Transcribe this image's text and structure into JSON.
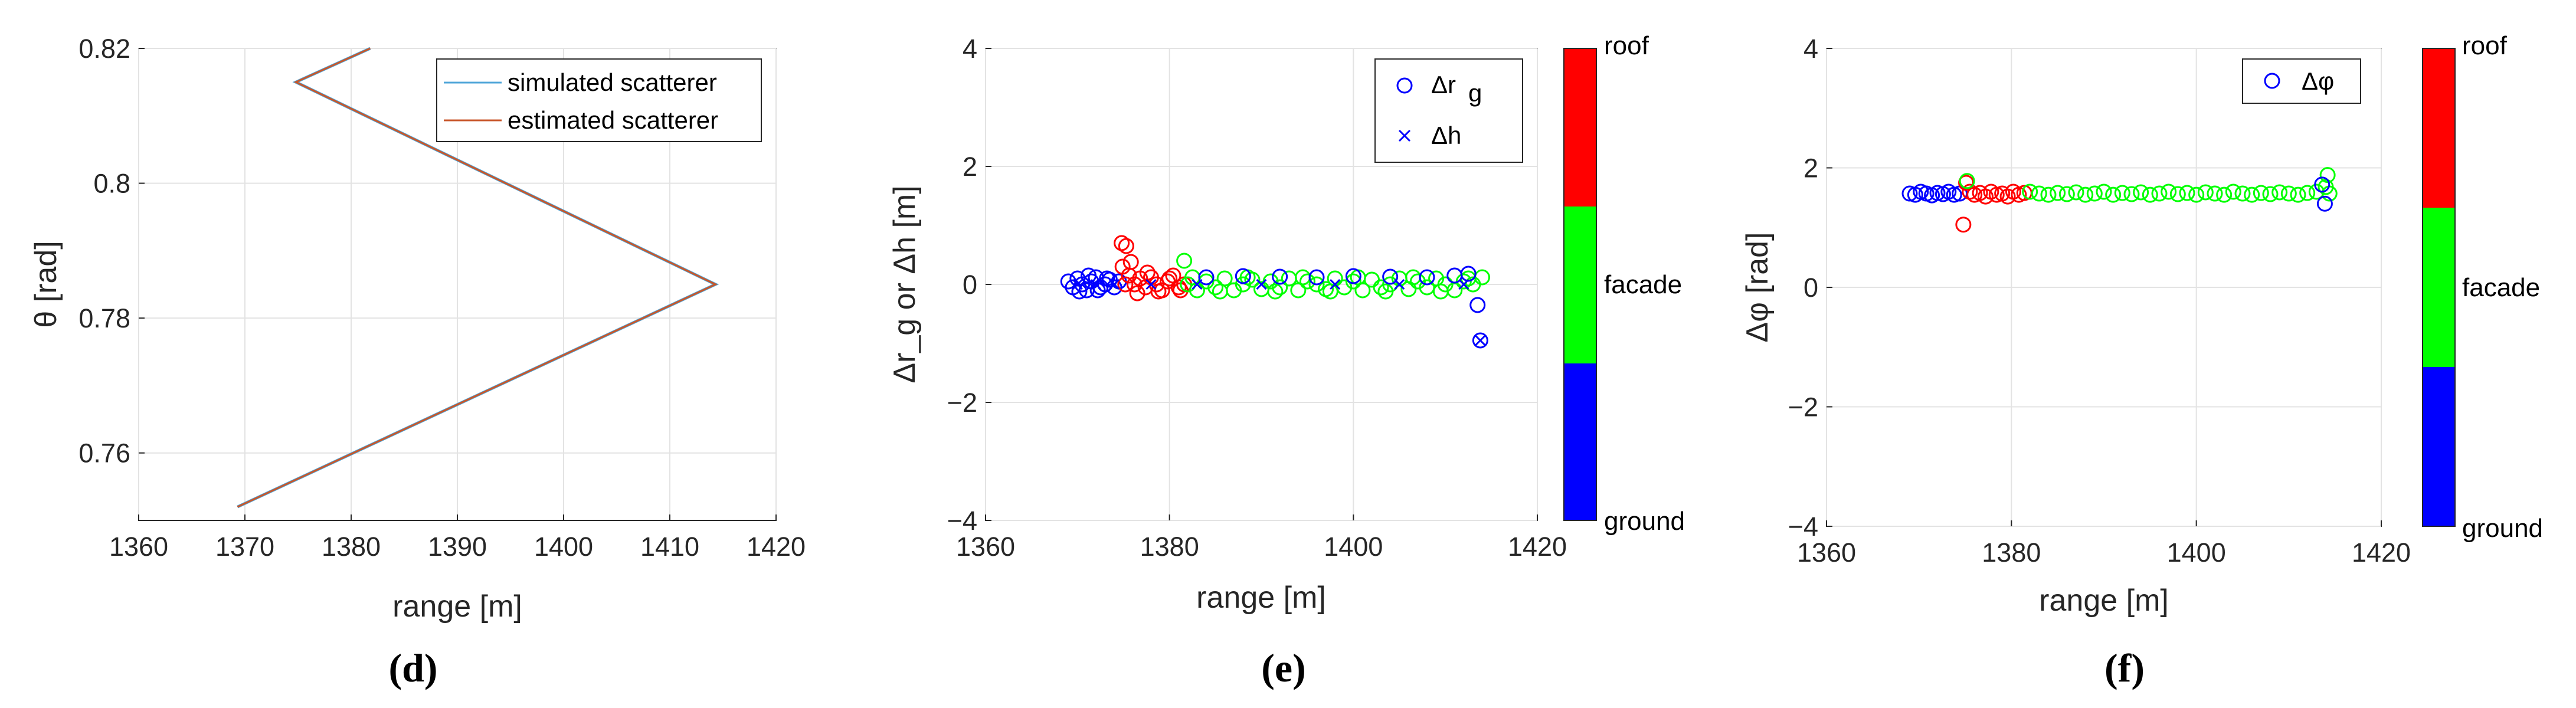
{
  "chart_data": [
    {
      "panel": "d",
      "type": "line",
      "caption": "(d)",
      "xlabel": "range [m]",
      "ylabel": "θ [rad]",
      "xlim": [
        1360,
        1420
      ],
      "ylim": [
        0.75,
        0.82
      ],
      "xticks": [
        "1360",
        "1370",
        "1380",
        "1390",
        "1400",
        "1410",
        "1420"
      ],
      "yticks": [
        "0.76",
        "0.78",
        "0.8",
        "0.82"
      ],
      "legend_position": "top-right",
      "grid": true,
      "series": [
        {
          "name": "simulated scatterer",
          "color": "#4fa6d8",
          "x": [
            1369.3,
            1414.3,
            1374.8,
            1381.8
          ],
          "y": [
            0.752,
            0.785,
            0.815,
            0.82
          ]
        },
        {
          "name": "estimated scatterer",
          "color": "#c8562a",
          "x": [
            1369.3,
            1414.3,
            1374.8,
            1381.8
          ],
          "y": [
            0.752,
            0.785,
            0.815,
            0.82
          ]
        }
      ]
    },
    {
      "panel": "e",
      "type": "scatter",
      "caption": "(e)",
      "xlabel": "range [m]",
      "ylabel": "Δr_g or Δh [m]",
      "xlim": [
        1360,
        1420
      ],
      "ylim": [
        -4,
        4
      ],
      "xticks": [
        "1360",
        "1380",
        "1400",
        "1420"
      ],
      "yticks": [
        "−4",
        "−2",
        "0",
        "2",
        "4"
      ],
      "legend_position": "top-right",
      "grid": true,
      "legend": [
        "Δr",
        "g",
        "Δh"
      ],
      "colorbar": {
        "labels": [
          "roof",
          "facade",
          "ground"
        ],
        "colors": [
          "#ff0000",
          "#00ff00",
          "#0000ff"
        ]
      },
      "series": [
        {
          "name": "Δr_g",
          "marker": "circle",
          "groups": [
            {
              "class": "ground",
              "color": "#0000ff",
              "x": [
                1369,
                1369.5,
                1370,
                1370.5,
                1371,
                1371.5,
                1372,
                1372.5,
                1373,
                1373.5,
                1374,
                1374.5,
                1370.2,
                1371.2,
                1372.2,
                1373.2
              ],
              "y": [
                0.05,
                -0.05,
                0.1,
                0.0,
                -0.1,
                0.05,
                0.12,
                -0.05,
                0.0,
                0.08,
                -0.05,
                0.05,
                -0.12,
                0.15,
                -0.1,
                0.1
              ]
            },
            {
              "class": "roof",
              "color": "#ff0000",
              "x": [
                1374.8,
                1375.3,
                1375.8,
                1374.9,
                1375.6,
                1376.2,
                1376.8,
                1377.4,
                1378,
                1378.6,
                1379.2,
                1379.8,
                1380.4,
                1381,
                1381.6,
                1376.5,
                1377.6,
                1378.8,
                1380,
                1381.2,
                1375.2
              ],
              "y": [
                0.7,
                0.65,
                0.38,
                0.3,
                0.15,
                0.0,
                0.1,
                -0.05,
                0.12,
                0.0,
                -0.1,
                0.05,
                0.15,
                -0.05,
                0.0,
                -0.15,
                0.2,
                -0.12,
                0.1,
                -0.1,
                0.0
              ]
            },
            {
              "class": "facade",
              "color": "#00ff00",
              "x": [
                1382,
                1383,
                1384,
                1385,
                1386,
                1387,
                1388,
                1389,
                1390,
                1391,
                1392,
                1393,
                1394,
                1395,
                1396,
                1397,
                1398,
                1399,
                1400,
                1401,
                1402,
                1403,
                1404,
                1405,
                1406,
                1407,
                1408,
                1409,
                1410,
                1411,
                1412,
                1413,
                1414,
                1382.5,
                1385.5,
                1388.5,
                1391.5,
                1394.5,
                1397.5,
                1400.5,
                1403.5,
                1406.5,
                1409.5,
                1412.5,
                1381.6
              ],
              "y": [
                0.0,
                -0.1,
                0.05,
                -0.05,
                0.1,
                -0.1,
                0.0,
                0.08,
                -0.08,
                0.05,
                -0.05,
                0.1,
                -0.1,
                0.05,
                0.0,
                -0.08,
                0.1,
                -0.05,
                0.05,
                -0.1,
                0.08,
                -0.05,
                0.0,
                0.1,
                -0.08,
                0.05,
                -0.05,
                0.1,
                0.0,
                -0.1,
                0.05,
                0.0,
                0.12,
                0.12,
                -0.12,
                0.12,
                -0.12,
                0.12,
                -0.12,
                0.12,
                -0.12,
                0.12,
                -0.12,
                0.1,
                0.4
              ]
            },
            {
              "class": "ground",
              "color": "#0000ff",
              "x": [
                1384,
                1388,
                1392,
                1396,
                1400,
                1404,
                1408,
                1411,
                1412.5,
                1413.5,
                1413.8
              ],
              "y": [
                0.12,
                0.14,
                0.13,
                0.12,
                0.14,
                0.13,
                0.12,
                0.15,
                0.18,
                -0.35,
                -0.95
              ]
            }
          ]
        },
        {
          "name": "Δh",
          "marker": "x",
          "color": "#0000ff",
          "x": [
            1370,
            1372,
            1374,
            1378,
            1383,
            1390,
            1398,
            1405,
            1412,
            1413.8
          ],
          "y": [
            0.0,
            0.0,
            0.0,
            0.0,
            0.0,
            0.0,
            0.0,
            0.0,
            0.0,
            -0.95
          ]
        }
      ]
    },
    {
      "panel": "f",
      "type": "scatter",
      "caption": "(f)",
      "xlabel": "range [m]",
      "ylabel": "Δφ [rad]",
      "xlim": [
        1360,
        1420
      ],
      "ylim": [
        -4,
        4
      ],
      "xticks": [
        "1360",
        "1380",
        "1400",
        "1420"
      ],
      "yticks": [
        "−4",
        "−2",
        "0",
        "2",
        "4"
      ],
      "legend_position": "top-right",
      "grid": true,
      "legend": [
        "Δφ"
      ],
      "colorbar": {
        "labels": [
          "roof",
          "facade",
          "ground"
        ],
        "colors": [
          "#ff0000",
          "#00ff00",
          "#0000ff"
        ]
      },
      "series": [
        {
          "name": "Δφ",
          "marker": "circle",
          "groups": [
            {
              "class": "ground",
              "color": "#0000ff",
              "x": [
                1369,
                1369.6,
                1370.2,
                1370.8,
                1371.4,
                1372,
                1372.6,
                1373.2,
                1373.8,
                1374.4
              ],
              "y": [
                1.57,
                1.55,
                1.6,
                1.57,
                1.54,
                1.58,
                1.56,
                1.6,
                1.55,
                1.57
              ]
            },
            {
              "class": "roof",
              "color": "#ff0000",
              "x": [
                1374.8,
                1375.1,
                1375.5,
                1376,
                1376.6,
                1377.2,
                1377.8,
                1378.4,
                1379,
                1379.6,
                1380.2,
                1380.8,
                1381.4
              ],
              "y": [
                1.05,
                1.75,
                1.6,
                1.55,
                1.58,
                1.52,
                1.6,
                1.55,
                1.57,
                1.52,
                1.6,
                1.55,
                1.58
              ]
            },
            {
              "class": "facade",
              "color": "#00ff00",
              "x": [
                1375.2,
                1382,
                1383,
                1384,
                1385,
                1386,
                1387,
                1388,
                1389,
                1390,
                1391,
                1392,
                1393,
                1394,
                1395,
                1396,
                1397,
                1398,
                1399,
                1400,
                1401,
                1402,
                1403,
                1404,
                1405,
                1406,
                1407,
                1408,
                1409,
                1410,
                1411,
                1412,
                1413,
                1414,
                1414.2,
                1414.4
              ],
              "y": [
                1.78,
                1.6,
                1.57,
                1.55,
                1.58,
                1.56,
                1.59,
                1.55,
                1.57,
                1.6,
                1.55,
                1.58,
                1.56,
                1.59,
                1.55,
                1.57,
                1.6,
                1.56,
                1.58,
                1.55,
                1.59,
                1.57,
                1.55,
                1.6,
                1.57,
                1.55,
                1.58,
                1.56,
                1.59,
                1.57,
                1.55,
                1.58,
                1.6,
                1.68,
                1.88,
                1.57
              ]
            },
            {
              "class": "ground",
              "color": "#0000ff",
              "x": [
                1413.6,
                1413.9
              ],
              "y": [
                1.72,
                1.4
              ]
            }
          ]
        }
      ]
    }
  ]
}
